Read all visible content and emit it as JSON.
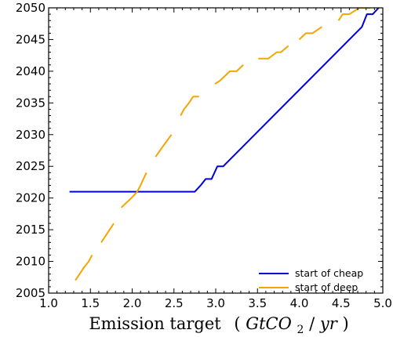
{
  "chart_data": {
    "type": "line",
    "xlabel": "Emission target",
    "xlabel_math": {
      "pre": "(",
      "italic1": "GtCO",
      "sub": "2",
      "mid": "/",
      "italic2": "yr",
      "post": ")"
    },
    "ylabel": "",
    "xlim": [
      1.0,
      5.0
    ],
    "ylim": [
      2005,
      2050
    ],
    "xticks": [
      1.0,
      1.5,
      2.0,
      2.5,
      3.0,
      3.5,
      4.0,
      4.5,
      5.0
    ],
    "xtick_labels": [
      "1.0",
      "1.5",
      "2.0",
      "2.5",
      "3.0",
      "3.5",
      "4.0",
      "4.5",
      "5.0"
    ],
    "yticks": [
      2005,
      2010,
      2015,
      2020,
      2025,
      2030,
      2035,
      2040,
      2045,
      2050
    ],
    "ytick_labels": [
      "2005",
      "2010",
      "2015",
      "2020",
      "2025",
      "2030",
      "2035",
      "2040",
      "2045",
      "2050"
    ],
    "grid": false,
    "legend_position": "lower-right",
    "series": [
      {
        "name": "start of cheap",
        "color": "#0000dd",
        "segments": [
          [
            [
              1.25,
              2021
            ],
            [
              2.75,
              2021
            ],
            [
              2.82,
              2022
            ],
            [
              2.88,
              2023
            ],
            [
              2.95,
              2023
            ],
            [
              3.02,
              2025
            ],
            [
              3.09,
              2025
            ],
            [
              4.75,
              2047
            ],
            [
              4.81,
              2049
            ],
            [
              4.88,
              2049
            ],
            [
              4.95,
              2050
            ]
          ]
        ]
      },
      {
        "name": "start of deep",
        "color": "#f5a500",
        "segments": [
          [
            [
              1.32,
              2007
            ],
            [
              1.42,
              2009
            ],
            [
              1.48,
              2010
            ],
            [
              1.52,
              2011
            ]
          ],
          [
            [
              1.63,
              2013
            ],
            [
              1.68,
              2014
            ],
            [
              1.73,
              2015
            ],
            [
              1.78,
              2016
            ]
          ],
          [
            [
              1.87,
              2018.5
            ],
            [
              1.99,
              2020
            ],
            [
              2.06,
              2021
            ],
            [
              2.1,
              2022
            ],
            [
              2.17,
              2024
            ]
          ],
          [
            [
              2.28,
              2026.5
            ],
            [
              2.36,
              2028
            ],
            [
              2.47,
              2030
            ]
          ],
          [
            [
              2.58,
              2033
            ],
            [
              2.62,
              2034
            ],
            [
              2.68,
              2035
            ],
            [
              2.73,
              2036
            ],
            [
              2.8,
              2036
            ]
          ],
          [
            [
              2.99,
              2038
            ],
            [
              3.05,
              2038.5
            ],
            [
              3.17,
              2040
            ],
            [
              3.25,
              2040
            ],
            [
              3.33,
              2041
            ]
          ],
          [
            [
              3.51,
              2042
            ],
            [
              3.63,
              2042
            ],
            [
              3.73,
              2043
            ],
            [
              3.78,
              2043
            ],
            [
              3.87,
              2044
            ]
          ],
          [
            [
              4.0,
              2045
            ],
            [
              4.08,
              2046
            ],
            [
              4.16,
              2046
            ],
            [
              4.27,
              2047
            ]
          ],
          [
            [
              4.47,
              2048
            ],
            [
              4.52,
              2049
            ],
            [
              4.6,
              2049
            ],
            [
              4.72,
              2050
            ],
            [
              4.85,
              2050
            ]
          ]
        ]
      }
    ]
  }
}
